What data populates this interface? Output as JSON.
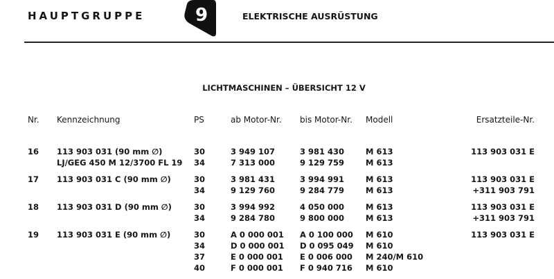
{
  "header": {
    "group_label": "HAUPTGRUPPE",
    "group_number": "9",
    "section_title": "ELEKTRISCHE AUSRÜSTUNG"
  },
  "table_title": "LICHTMASCHINEN – ÜBERSICHT 12 V",
  "columns": [
    "Nr.",
    "Kennzeichnung",
    "PS",
    "ab Motor-Nr.",
    "bis Motor-Nr.",
    "Modell",
    "Ersatzteile-Nr."
  ],
  "rows": [
    {
      "nr": "16",
      "lines": [
        {
          "kennzeichnung": "113 903 031 (90 mm ∅)",
          "ps": "30",
          "ab": "3 949 107",
          "bis": "3 981 430",
          "modell": "M 613",
          "ersatz": "113 903 031 E"
        },
        {
          "kennzeichnung": "LJ/GEG 450 M 12/3700 FL 19",
          "ps": "34",
          "ab": "7 313 000",
          "bis": "9 129 759",
          "modell": "M 613",
          "ersatz": ""
        }
      ]
    },
    {
      "nr": "17",
      "lines": [
        {
          "kennzeichnung": "113 903 031 C (90 mm ∅)",
          "ps": "30",
          "ab": "3 981 431",
          "bis": "3 994 991",
          "modell": "M 613",
          "ersatz": "113 903 031 E"
        },
        {
          "kennzeichnung": "",
          "ps": "34",
          "ab": "9 129 760",
          "bis": "9 284 779",
          "modell": "M 613",
          "ersatz": "+311 903 791"
        }
      ]
    },
    {
      "nr": "18",
      "lines": [
        {
          "kennzeichnung": "113 903 031 D (90 mm ∅)",
          "ps": "30",
          "ab": "3 994 992",
          "bis": "4 050 000",
          "modell": "M 613",
          "ersatz": "113 903 031 E"
        },
        {
          "kennzeichnung": "",
          "ps": "34",
          "ab": "9 284 780",
          "bis": "9 800 000",
          "modell": "M 613",
          "ersatz": "+311 903 791"
        }
      ]
    },
    {
      "nr": "19",
      "lines": [
        {
          "kennzeichnung": "113 903 031 E (90 mm ∅)",
          "ps": "30",
          "ab": "A 0 000 001",
          "bis": "A 0 100 000",
          "modell": "M 610",
          "ersatz": "113 903 031 E"
        },
        {
          "kennzeichnung": "",
          "ps": "34",
          "ab": "D 0 000 001",
          "bis": "D 0 095 049",
          "modell": "M 610",
          "ersatz": ""
        },
        {
          "kennzeichnung": "",
          "ps": "37",
          "ab": "E 0 000 001",
          "bis": "E 0 006 000",
          "modell": "M 240/M 610",
          "ersatz": ""
        },
        {
          "kennzeichnung": "",
          "ps": "40",
          "ab": "F 0 000 001",
          "bis": "F 0 940 716",
          "modell": "M 610",
          "ersatz": ""
        }
      ]
    }
  ]
}
